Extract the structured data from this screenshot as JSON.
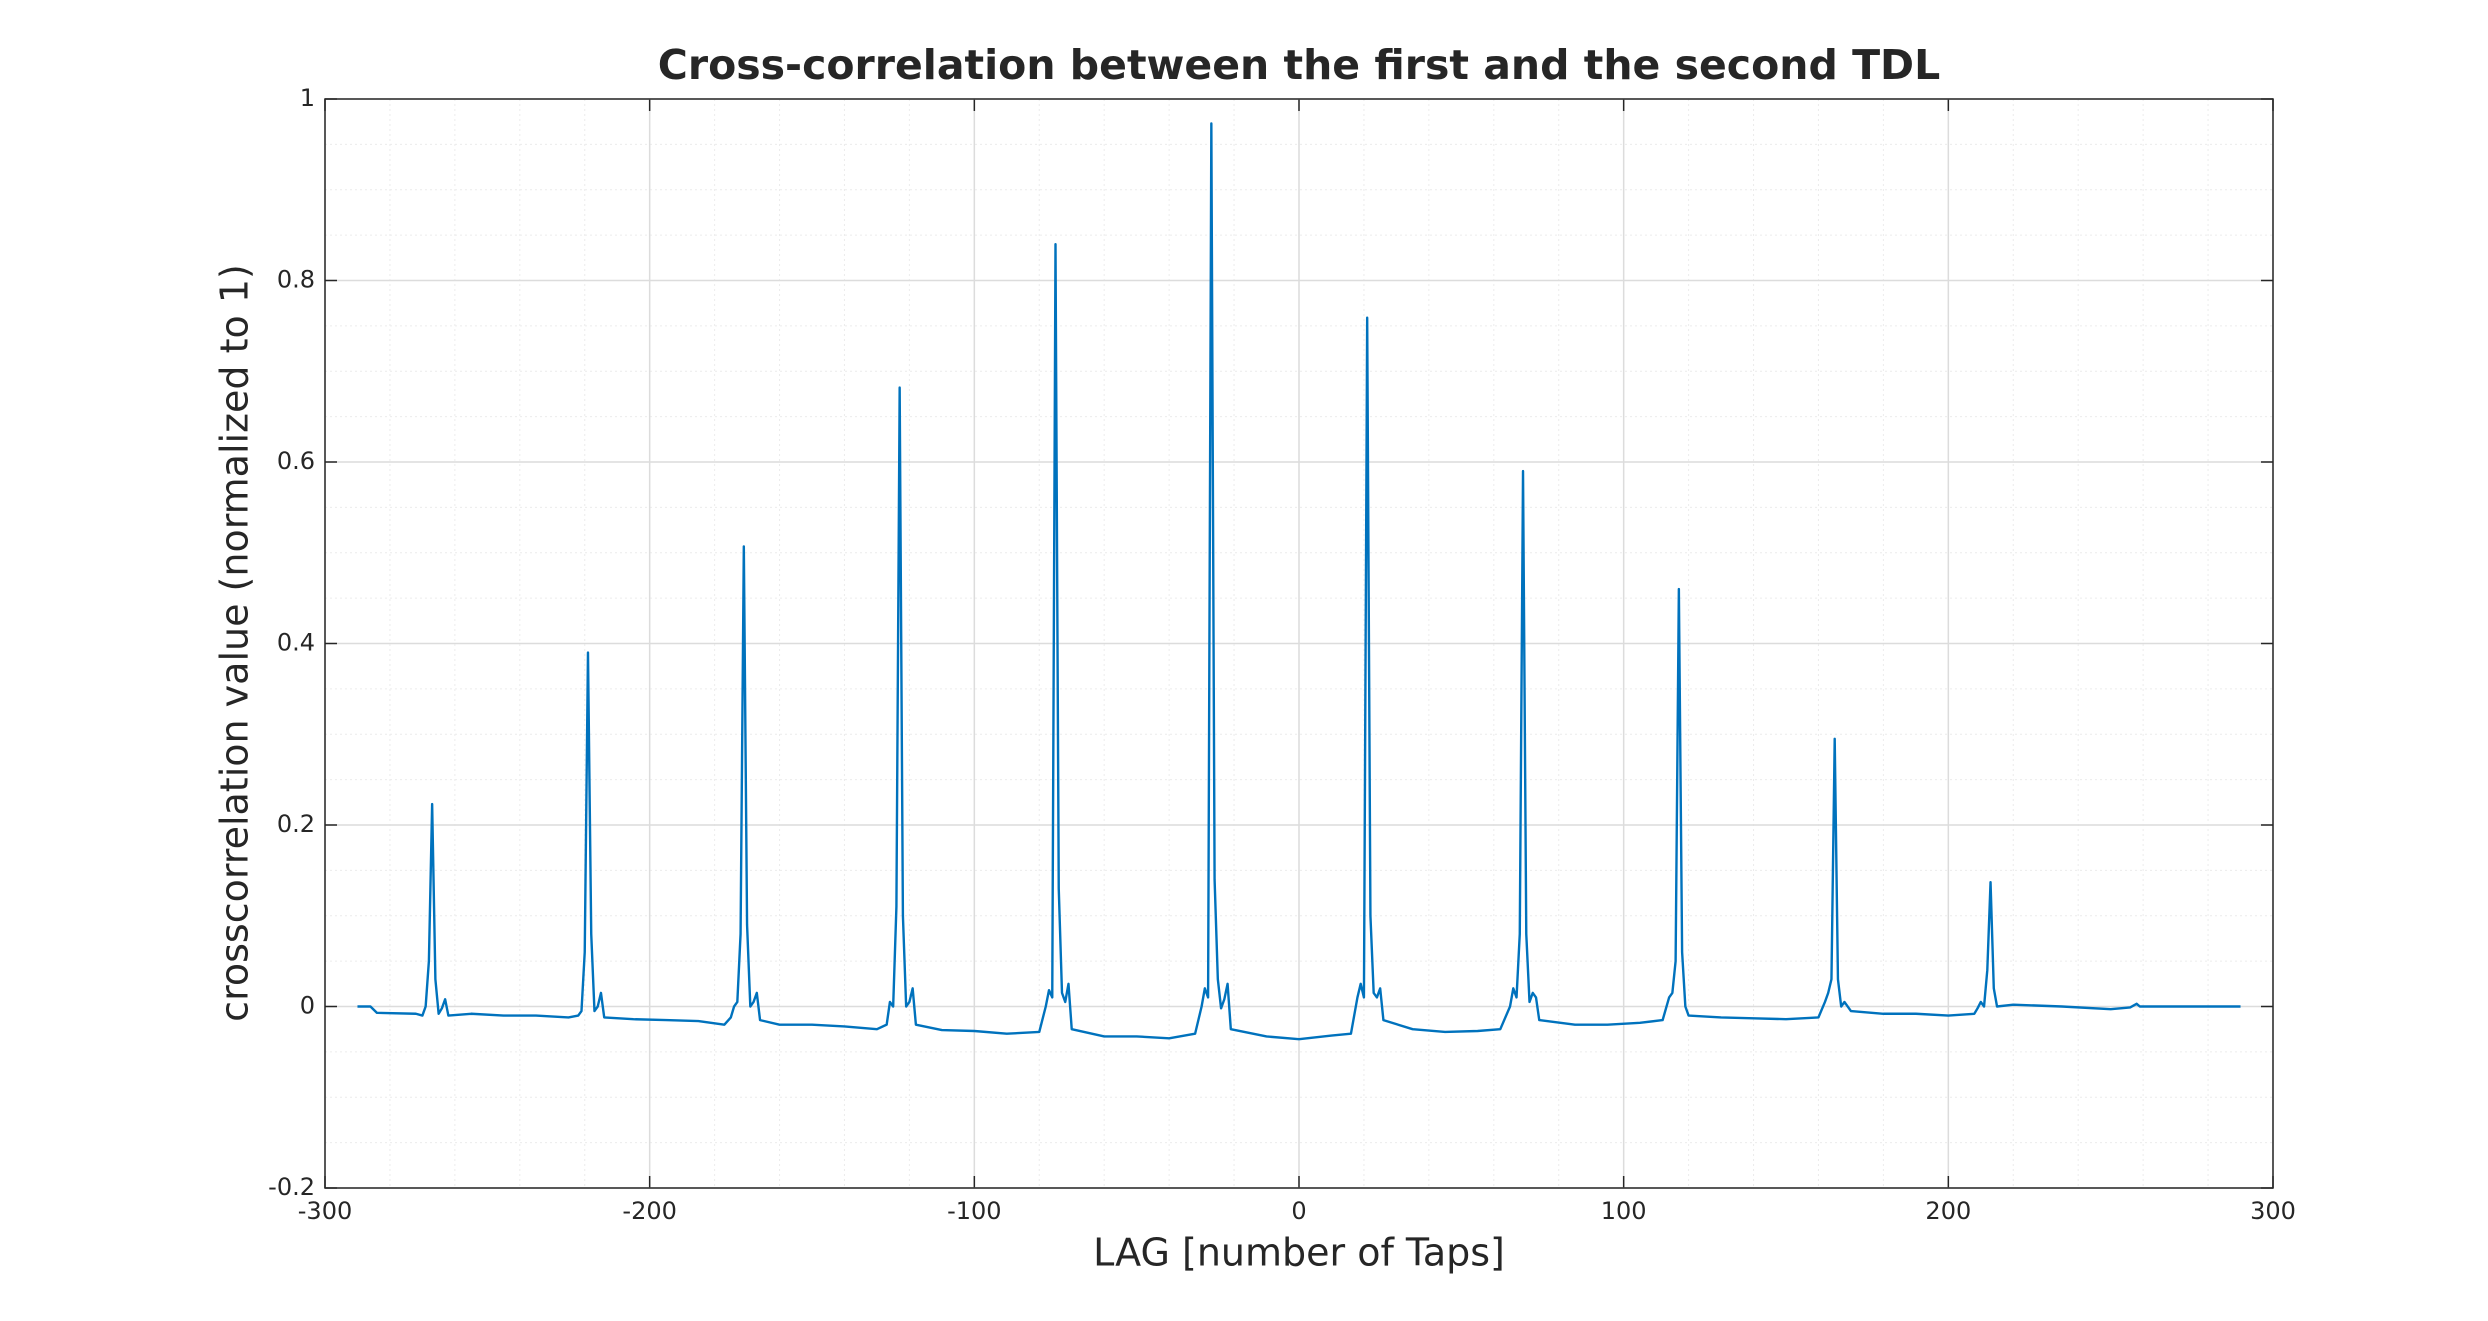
{
  "chart_data": {
    "type": "line",
    "title": "Cross-correlation between the first and the second TDL",
    "x_label": "LAG [number of Taps]",
    "y_label": "crosscorrelation value (normalized to 1)",
    "xlim": [
      -300,
      300
    ],
    "xticks": [
      -300,
      -200,
      -100,
      0,
      100,
      200,
      300
    ],
    "ylim": [
      -0.2,
      1
    ],
    "yticks": [
      -0.2,
      0,
      0.2,
      0.4,
      0.6,
      0.8,
      1
    ],
    "grid": true,
    "minor_grid": true,
    "series": [
      {
        "color": "#0072bd",
        "x": [
          -290,
          -286,
          -284,
          -272,
          -270,
          -269,
          -268,
          -267,
          -266,
          -265,
          -264,
          -263,
          -262,
          -255,
          -245,
          -235,
          -225,
          -222,
          -221,
          -220,
          -219,
          -218,
          -217,
          -216,
          -215,
          -214,
          -205,
          -195,
          -185,
          -177,
          -175,
          -174,
          -173,
          -172,
          -171,
          -170,
          -169,
          -168,
          -167,
          -166,
          -160,
          -150,
          -140,
          -130,
          -127,
          -126,
          -125,
          -124,
          -123,
          -122,
          -121,
          -120,
          -119,
          -118,
          -110,
          -100,
          -90,
          -80,
          -78,
          -77,
          -76,
          -75,
          -74,
          -73,
          -72,
          -71,
          -70,
          -60,
          -50,
          -40,
          -32,
          -30,
          -29,
          -28,
          -27,
          -26,
          -25,
          -24,
          -23,
          -22,
          -21,
          -10,
          0,
          10,
          16,
          18,
          19,
          20,
          21,
          22,
          23,
          24,
          25,
          26,
          35,
          45,
          55,
          62,
          65,
          66,
          67,
          68,
          69,
          70,
          71,
          72,
          73,
          74,
          85,
          95,
          105,
          112,
          114,
          115,
          116,
          117,
          118,
          119,
          120,
          130,
          140,
          150,
          160,
          162,
          163,
          164,
          165,
          166,
          167,
          168,
          170,
          180,
          190,
          200,
          208,
          209,
          210,
          211,
          212,
          213,
          214,
          215,
          220,
          235,
          250,
          256,
          258,
          259,
          290
        ],
        "values": [
          0,
          0,
          -0.007,
          -0.008,
          -0.01,
          0,
          0.05,
          0.223,
          0.03,
          -0.008,
          -0.002,
          0.008,
          -0.01,
          -0.008,
          -0.01,
          -0.01,
          -0.012,
          -0.01,
          -0.005,
          0.06,
          0.39,
          0.08,
          -0.005,
          0,
          0.015,
          -0.012,
          -0.014,
          -0.015,
          -0.016,
          -0.02,
          -0.012,
          0,
          0.005,
          0.08,
          0.507,
          0.09,
          0,
          0.005,
          0.015,
          -0.015,
          -0.02,
          -0.02,
          -0.022,
          -0.025,
          -0.02,
          0.005,
          0,
          0.11,
          0.682,
          0.1,
          0,
          0.005,
          0.02,
          -0.02,
          -0.026,
          -0.027,
          -0.03,
          -0.028,
          0,
          0.018,
          0.01,
          0.84,
          0.13,
          0.015,
          0.005,
          0.025,
          -0.025,
          -0.033,
          -0.033,
          -0.035,
          -0.03,
          0,
          0.02,
          0.01,
          0.973,
          0.14,
          0.03,
          -0.002,
          0.008,
          0.025,
          -0.025,
          -0.033,
          -0.036,
          -0.032,
          -0.03,
          0.01,
          0.025,
          0.01,
          0.759,
          0.1,
          0.015,
          0.01,
          0.02,
          -0.015,
          -0.025,
          -0.028,
          -0.027,
          -0.025,
          0,
          0.02,
          0.01,
          0.08,
          0.59,
          0.08,
          0.005,
          0.015,
          0.01,
          -0.015,
          -0.02,
          -0.02,
          -0.018,
          -0.015,
          0.01,
          0.015,
          0.05,
          0.46,
          0.06,
          0,
          -0.01,
          -0.012,
          -0.013,
          -0.014,
          -0.012,
          0.005,
          0.015,
          0.03,
          0.295,
          0.03,
          0,
          0.005,
          -0.005,
          -0.008,
          -0.008,
          -0.01,
          -0.008,
          -0.002,
          0.005,
          0,
          0.04,
          0.137,
          0.02,
          0,
          0.002,
          0,
          -0.003,
          -0.001,
          0.003,
          0,
          0
        ]
      }
    ]
  }
}
